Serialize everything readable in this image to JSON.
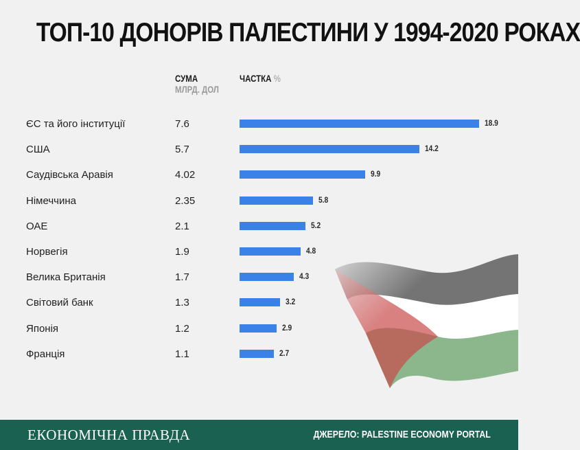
{
  "title": "ТОП-10 ДОНОРІВ ПАЛЕСТИНИ У 1994-2020 РОКАХ",
  "columns": {
    "sum_label": "СУМА",
    "sum_unit": "МЛРД. ДОЛ",
    "share_label": "ЧАСТКА",
    "share_unit": "%"
  },
  "chart_data": {
    "type": "bar",
    "orientation": "horizontal",
    "categories": [
      "ЄС та його інституції",
      "США",
      "Саудівська Аравія",
      "Німеччина",
      "ОАЕ",
      "Норвегія",
      "Велика Британія",
      "Світовий банк",
      "Японія",
      "Франція"
    ],
    "sums": [
      "7.6",
      "5.7",
      "4.02",
      "2.35",
      "2.1",
      "1.9",
      "1.7",
      "1.3",
      "1.2",
      "1.1"
    ],
    "values": [
      18.9,
      14.2,
      9.9,
      5.8,
      5.2,
      4.8,
      4.3,
      3.2,
      2.9,
      2.7
    ],
    "value_labels": [
      "18.9",
      "14.2",
      "9.9",
      "5.8",
      "5.2",
      "4.8",
      "4.3",
      "3.2",
      "2.9",
      "2.7"
    ],
    "bar_color": "#3b82e8",
    "xlim": [
      0,
      18.9
    ],
    "grid": false
  },
  "footer": {
    "brand": "ЕКОНОМІЧНА ПРАВДА",
    "source": "ДЖЕРЕЛО: PALESTINE ECONOMY PORTAL",
    "background": "#1b6152"
  },
  "decoration": {
    "flag_icon": "palestine-flag-icon"
  }
}
